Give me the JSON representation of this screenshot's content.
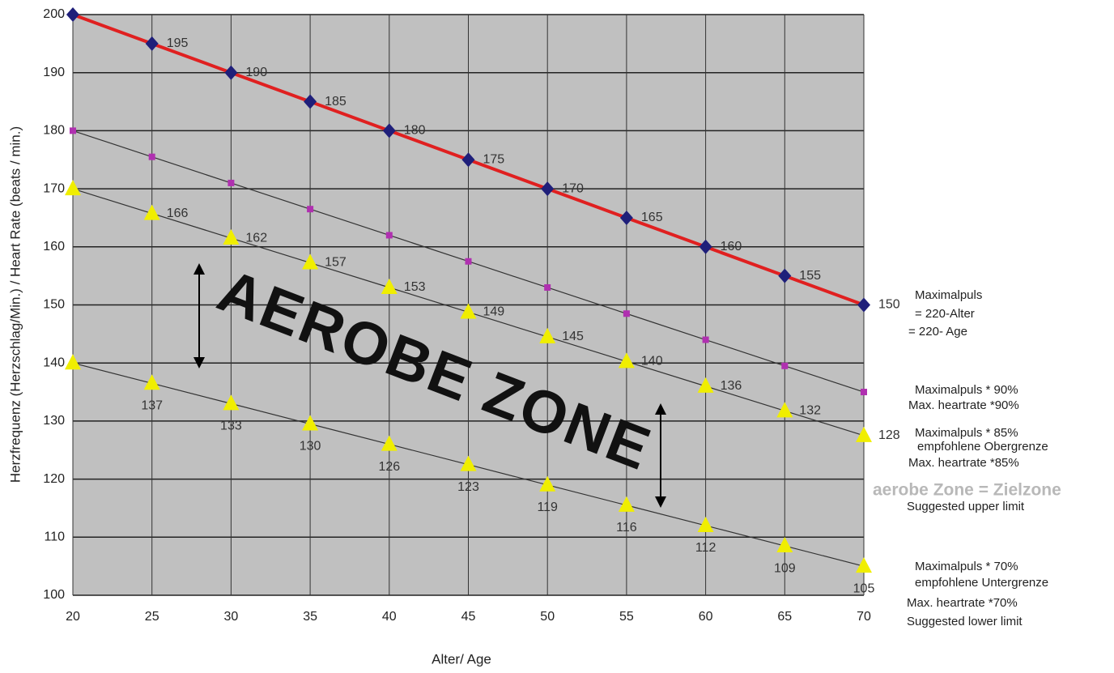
{
  "chart_data": {
    "type": "line",
    "ylabel": "Herzfrequenz (Herzschlag/Min.) / Heart Rate (beats / min.)",
    "xlabel": "Alter/ Age",
    "zone_label": "AEROBE ZONE",
    "zone_note": "aerobe Zone = Zielzone",
    "x": [
      20,
      25,
      30,
      35,
      40,
      45,
      50,
      55,
      60,
      65,
      70
    ],
    "xlim": [
      20,
      70
    ],
    "xticks": [
      20,
      25,
      30,
      35,
      40,
      45,
      50,
      55,
      60,
      65,
      70
    ],
    "ylim": [
      100,
      200
    ],
    "yticks": [
      100,
      110,
      120,
      130,
      140,
      150,
      160,
      170,
      180,
      190,
      200
    ],
    "grid": true,
    "background": "#c0c0c0",
    "series": [
      {
        "color": "#e02020",
        "marker": "diamond",
        "marker_color": "#1f1f7a",
        "label_position": "right",
        "values": [
          200,
          195,
          190,
          185,
          180,
          175,
          170,
          165,
          160,
          155,
          150
        ],
        "value_labels": [
          null,
          "195",
          "190",
          "185",
          "180",
          "175",
          "170",
          "165",
          "160",
          "155",
          "150"
        ],
        "notes": [
          "Maximalpuls",
          "= 220-Alter",
          "= 220- Age"
        ]
      },
      {
        "color": "#333333",
        "marker": "square",
        "marker_color": "#b030b0",
        "label_position": "none",
        "values": [
          180,
          175.5,
          171,
          166.5,
          162,
          157.5,
          153,
          148.5,
          144,
          139.5,
          135
        ],
        "notes": [
          "Maximalpuls * 90%",
          "Max. heartrate *90%"
        ]
      },
      {
        "color": "#333333",
        "marker": "triangle",
        "marker_color": "#f0ee00",
        "label_position": "right",
        "values": [
          170,
          165.75,
          161.5,
          157.25,
          153,
          148.75,
          144.5,
          140.25,
          136,
          131.75,
          127.5
        ],
        "value_labels": [
          null,
          "166",
          "162",
          "157",
          "153",
          "149",
          "145",
          "140",
          "136",
          "132",
          "128"
        ],
        "notes": [
          "Maximalpuls * 85%",
          "empfohlene Obergrenze",
          "Max. heartrate *85%",
          "Suggested upper limit"
        ]
      },
      {
        "color": "#333333",
        "marker": "triangle",
        "marker_color": "#f0ee00",
        "label_position": "below",
        "values": [
          140,
          136.5,
          133,
          129.5,
          126,
          122.5,
          119,
          115.5,
          112,
          108.5,
          105
        ],
        "value_labels": [
          null,
          "137",
          "133",
          "130",
          "126",
          "123",
          "119",
          "116",
          "112",
          "109",
          "105"
        ],
        "notes": [
          "Maximalpuls * 70%",
          "empfohlene Untergrenze",
          "Max. heartrate *70%",
          "Suggested lower limit"
        ]
      }
    ]
  }
}
